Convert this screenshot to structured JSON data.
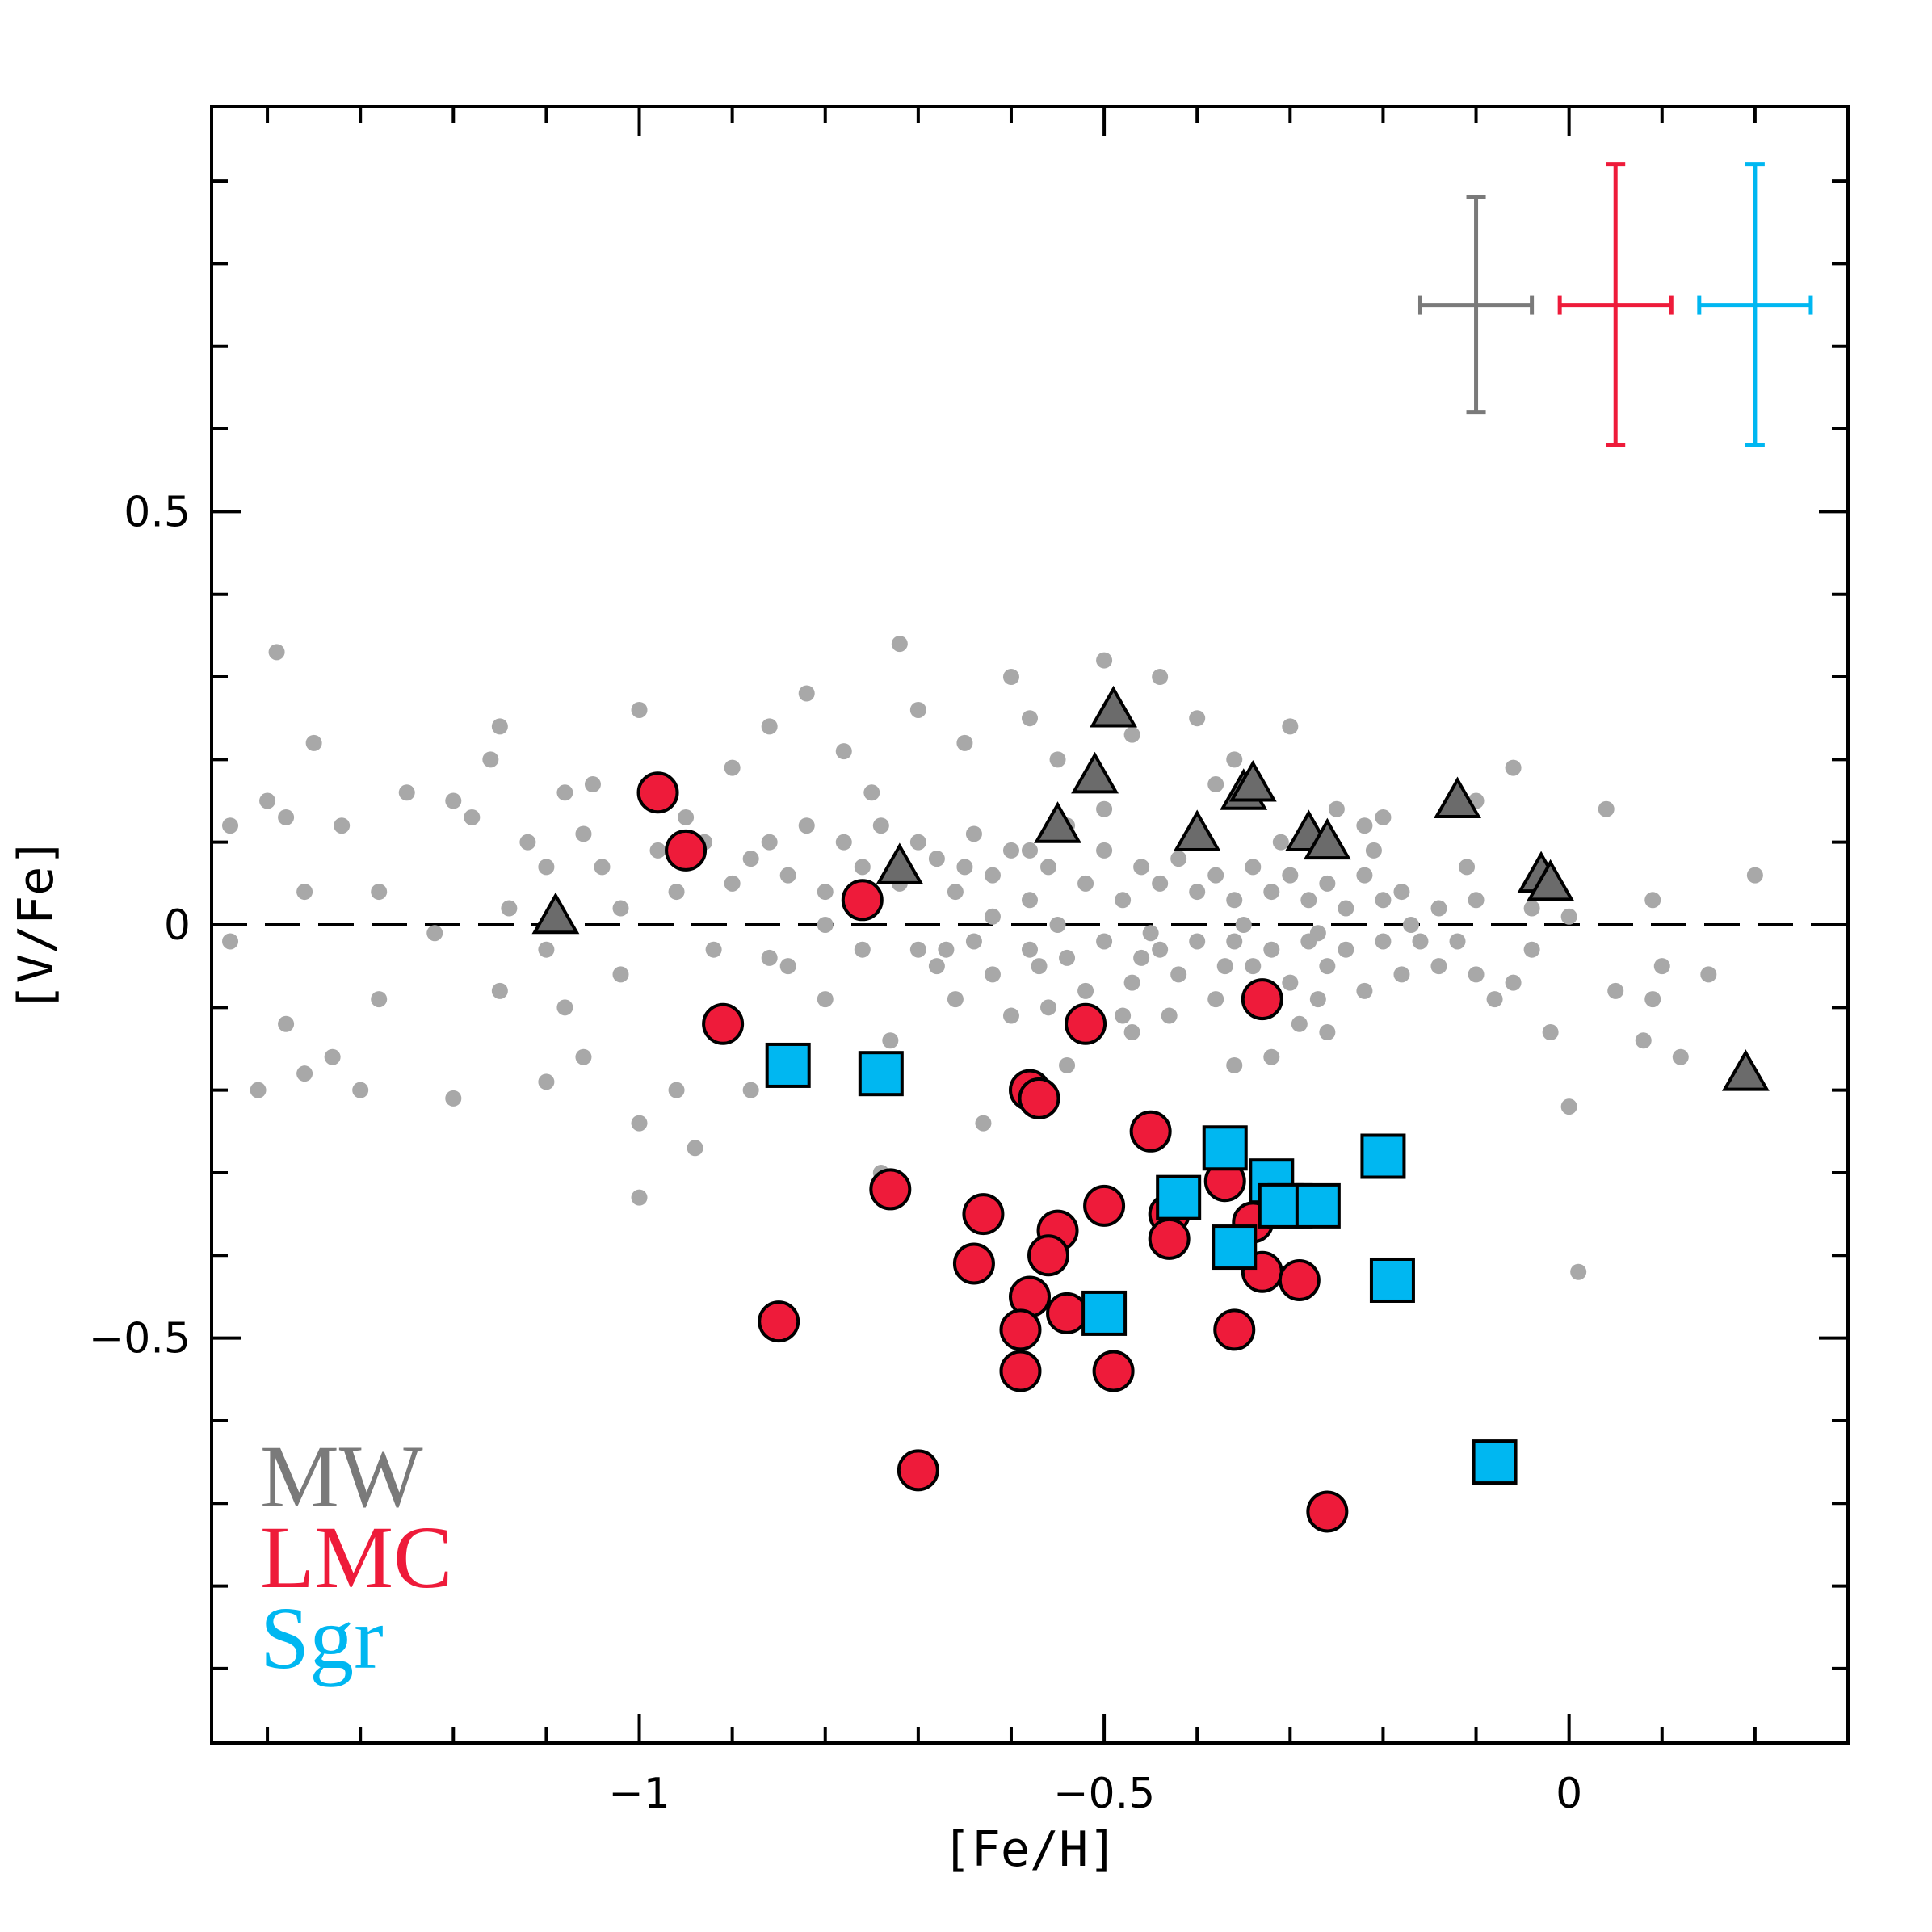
{
  "chart_data": {
    "type": "scatter",
    "xlabel": "[Fe/H]",
    "ylabel": "[V/Fe]",
    "xlim": [
      -1.46,
      0.3
    ],
    "ylim": [
      -0.99,
      0.99
    ],
    "x_ticks": [
      {
        "value": -1,
        "label": "−1"
      },
      {
        "value": -0.5,
        "label": "−0.5"
      },
      {
        "value": 0,
        "label": "0"
      }
    ],
    "y_ticks": [
      {
        "value": 0.5,
        "label": "0.5"
      },
      {
        "value": 0,
        "label": "0"
      },
      {
        "value": -0.5,
        "label": "−0.5"
      }
    ],
    "reference_line": {
      "y": 0,
      "style": "dashed"
    },
    "legend": [
      {
        "label": "MW",
        "color": "#7a7a7a"
      },
      {
        "label": "LMC",
        "color": "#ee1b3a"
      },
      {
        "label": "Sgr",
        "color": "#00b7f1"
      }
    ],
    "error_bars": [
      {
        "series": "MW",
        "x": -0.1,
        "y": 0.75,
        "xerr": 0.06,
        "yerr": 0.13,
        "color": "#7a7a7a"
      },
      {
        "series": "LMC",
        "x": 0.05,
        "y": 0.75,
        "xerr": 0.06,
        "yerr": 0.17,
        "color": "#ee1b3a"
      },
      {
        "series": "Sgr",
        "x": 0.2,
        "y": 0.75,
        "xerr": 0.06,
        "yerr": 0.17,
        "color": "#00b7f1"
      }
    ],
    "series": [
      {
        "name": "MW field",
        "marker": "dot",
        "color": "#a8a8a8",
        "points": [
          [
            -1.39,
            0.33
          ],
          [
            -1.35,
            0.22
          ],
          [
            -1.25,
            0.16
          ],
          [
            -1.2,
            0.15
          ],
          [
            -1.16,
            0.2
          ],
          [
            -1.15,
            0.24
          ],
          [
            -1.08,
            0.16
          ],
          [
            -1.05,
            0.17
          ],
          [
            -1.0,
            0.26
          ],
          [
            -0.95,
            0.13
          ],
          [
            -0.9,
            0.19
          ],
          [
            -0.86,
            0.24
          ],
          [
            -0.82,
            0.28
          ],
          [
            -0.78,
            0.21
          ],
          [
            -0.75,
            0.16
          ],
          [
            -0.72,
            0.34
          ],
          [
            -0.7,
            0.26
          ],
          [
            -0.65,
            0.22
          ],
          [
            -0.6,
            0.3
          ],
          [
            -0.58,
            0.25
          ],
          [
            -0.55,
            0.2
          ],
          [
            -0.5,
            0.32
          ],
          [
            -0.47,
            0.23
          ],
          [
            -0.44,
            0.3
          ],
          [
            -0.4,
            0.25
          ],
          [
            -0.36,
            0.2
          ],
          [
            -0.3,
            0.24
          ],
          [
            -0.25,
            0.14
          ],
          [
            -0.2,
            0.13
          ],
          [
            -0.1,
            0.15
          ],
          [
            -0.06,
            0.19
          ],
          [
            0.04,
            0.14
          ],
          [
            0.2,
            0.06
          ],
          [
            -1.44,
            0.12
          ],
          [
            -1.4,
            0.15
          ],
          [
            -1.38,
            0.13
          ],
          [
            -1.36,
            0.04
          ],
          [
            -1.32,
            0.12
          ],
          [
            -1.28,
            0.04
          ],
          [
            -1.18,
            0.13
          ],
          [
            -1.14,
            0.02
          ],
          [
            -1.12,
            0.1
          ],
          [
            -1.1,
            0.07
          ],
          [
            -1.06,
            0.11
          ],
          [
            -1.04,
            0.07
          ],
          [
            -1.02,
            0.02
          ],
          [
            -0.98,
            0.09
          ],
          [
            -0.96,
            0.04
          ],
          [
            -0.93,
            0.1
          ],
          [
            -0.9,
            0.05
          ],
          [
            -0.88,
            0.08
          ],
          [
            -0.86,
            0.1
          ],
          [
            -0.84,
            0.06
          ],
          [
            -0.82,
            0.12
          ],
          [
            -0.8,
            0.04
          ],
          [
            -0.78,
            0.1
          ],
          [
            -0.76,
            0.07
          ],
          [
            -0.74,
            0.12
          ],
          [
            -0.72,
            0.05
          ],
          [
            -0.7,
            0.1
          ],
          [
            -0.68,
            0.08
          ],
          [
            -0.66,
            0.04
          ],
          [
            -0.64,
            0.11
          ],
          [
            -0.62,
            0.06
          ],
          [
            -0.6,
            0.09
          ],
          [
            -0.58,
            0.03
          ],
          [
            -0.56,
            0.07
          ],
          [
            -0.54,
            0.12
          ],
          [
            -0.52,
            0.05
          ],
          [
            -0.5,
            0.09
          ],
          [
            -0.48,
            0.03
          ],
          [
            -0.46,
            0.07
          ],
          [
            -0.44,
            0.05
          ],
          [
            -0.42,
            0.08
          ],
          [
            -0.4,
            0.04
          ],
          [
            -0.38,
            0.06
          ],
          [
            -0.36,
            0.03
          ],
          [
            -0.34,
            0.07
          ],
          [
            -0.32,
            0.04
          ],
          [
            -0.3,
            0.06
          ],
          [
            -0.28,
            0.03
          ],
          [
            -0.26,
            0.05
          ],
          [
            -0.24,
            0.02
          ],
          [
            -0.22,
            0.06
          ],
          [
            -0.2,
            0.03
          ],
          [
            -0.18,
            0.04
          ],
          [
            -0.14,
            0.02
          ],
          [
            -0.1,
            0.03
          ],
          [
            -0.04,
            0.02
          ],
          [
            0.0,
            0.01
          ],
          [
            0.09,
            0.03
          ],
          [
            -1.44,
            -0.02
          ],
          [
            -1.41,
            -0.2
          ],
          [
            -1.38,
            -0.12
          ],
          [
            -1.36,
            -0.18
          ],
          [
            -1.33,
            -0.16
          ],
          [
            -1.3,
            -0.2
          ],
          [
            -1.28,
            -0.09
          ],
          [
            -1.22,
            -0.01
          ],
          [
            -1.2,
            -0.21
          ],
          [
            -1.15,
            -0.08
          ],
          [
            -1.1,
            -0.03
          ],
          [
            -1.1,
            -0.19
          ],
          [
            -1.08,
            -0.1
          ],
          [
            -1.06,
            -0.16
          ],
          [
            -1.0,
            -0.24
          ],
          [
            -1.0,
            -0.33
          ],
          [
            -0.96,
            -0.2
          ],
          [
            -0.94,
            -0.27
          ],
          [
            -0.92,
            -0.03
          ],
          [
            -0.88,
            -0.2
          ],
          [
            -0.84,
            -0.05
          ],
          [
            -0.8,
            -0.09
          ],
          [
            -0.76,
            -0.03
          ],
          [
            -0.74,
            -0.3
          ],
          [
            -0.73,
            -0.14
          ],
          [
            -0.7,
            -0.03
          ],
          [
            -0.68,
            -0.05
          ],
          [
            -0.66,
            -0.09
          ],
          [
            -0.64,
            -0.02
          ],
          [
            -0.63,
            -0.24
          ],
          [
            -0.62,
            -0.06
          ],
          [
            -0.6,
            -0.11
          ],
          [
            -0.58,
            -0.03
          ],
          [
            -0.56,
            -0.1
          ],
          [
            -0.54,
            -0.04
          ],
          [
            -0.52,
            -0.08
          ],
          [
            -0.5,
            -0.02
          ],
          [
            -0.48,
            -0.11
          ],
          [
            -0.46,
            -0.04
          ],
          [
            -0.44,
            -0.03
          ],
          [
            -0.42,
            -0.06
          ],
          [
            -0.4,
            -0.02
          ],
          [
            -0.38,
            -0.09
          ],
          [
            -0.36,
            -0.02
          ],
          [
            -0.34,
            -0.05
          ],
          [
            -0.32,
            -0.03
          ],
          [
            -0.3,
            -0.07
          ],
          [
            -0.28,
            -0.02
          ],
          [
            -0.26,
            -0.05
          ],
          [
            -0.24,
            -0.03
          ],
          [
            -0.22,
            -0.08
          ],
          [
            -0.2,
            -0.02
          ],
          [
            -0.18,
            -0.06
          ],
          [
            -0.16,
            -0.02
          ],
          [
            -0.14,
            -0.05
          ],
          [
            -0.12,
            -0.02
          ],
          [
            -0.1,
            -0.06
          ],
          [
            -0.08,
            -0.09
          ],
          [
            -0.06,
            -0.07
          ],
          [
            -0.04,
            -0.03
          ],
          [
            -0.02,
            -0.13
          ],
          [
            0.0,
            -0.22
          ],
          [
            0.01,
            -0.42
          ],
          [
            0.05,
            -0.08
          ],
          [
            0.08,
            -0.14
          ],
          [
            0.09,
            -0.09
          ],
          [
            0.1,
            -0.05
          ],
          [
            0.12,
            -0.16
          ],
          [
            0.15,
            -0.06
          ],
          [
            -0.54,
            -0.17
          ],
          [
            -0.47,
            -0.13
          ],
          [
            -0.36,
            -0.17
          ],
          [
            -0.32,
            -0.16
          ],
          [
            -0.29,
            -0.12
          ],
          [
            -0.26,
            -0.13
          ],
          [
            -0.5,
            0.14
          ],
          [
            -0.38,
            0.17
          ],
          [
            -0.22,
            0.12
          ],
          [
            -0.62,
            0.01
          ],
          [
            -0.55,
            0.0
          ],
          [
            -0.45,
            -0.01
          ],
          [
            -0.35,
            0.0
          ],
          [
            -0.27,
            -0.01
          ],
          [
            -0.17,
            0.0
          ],
          [
            -0.57,
            -0.05
          ],
          [
            -0.47,
            -0.07
          ],
          [
            -0.37,
            -0.05
          ],
          [
            -0.67,
            -0.03
          ],
          [
            -0.52,
            -0.12
          ],
          [
            -0.43,
            -0.11
          ],
          [
            -0.27,
            -0.09
          ],
          [
            -0.65,
            0.07
          ],
          [
            -0.58,
            0.09
          ],
          [
            -0.41,
            0.1
          ],
          [
            -0.31,
            0.1
          ],
          [
            -0.21,
            0.09
          ],
          [
            -0.11,
            0.07
          ],
          [
            -0.8,
            0.0
          ],
          [
            -0.86,
            -0.04
          ],
          [
            -1.02,
            -0.06
          ],
          [
            -0.9,
            -0.12
          ]
        ]
      },
      {
        "name": "MW",
        "marker": "triangle",
        "color": "#6b6b6b",
        "points": [
          [
            -1.09,
            0.01
          ],
          [
            -0.72,
            0.07
          ],
          [
            -0.55,
            0.12
          ],
          [
            -0.51,
            0.18
          ],
          [
            -0.49,
            0.26
          ],
          [
            -0.4,
            0.11
          ],
          [
            -0.35,
            0.16
          ],
          [
            -0.34,
            0.17
          ],
          [
            -0.28,
            0.11
          ],
          [
            -0.26,
            0.1
          ],
          [
            -0.12,
            0.15
          ],
          [
            -0.03,
            0.06
          ],
          [
            -0.02,
            0.05
          ],
          [
            0.19,
            -0.18
          ]
        ]
      },
      {
        "name": "LMC",
        "marker": "circle",
        "color": "#ee1b3a",
        "points": [
          [
            -0.98,
            0.16
          ],
          [
            -0.95,
            0.09
          ],
          [
            -0.76,
            0.03
          ],
          [
            -0.91,
            -0.12
          ],
          [
            -0.52,
            -0.12
          ],
          [
            -0.33,
            -0.09
          ],
          [
            -0.58,
            -0.2
          ],
          [
            -0.57,
            -0.21
          ],
          [
            -0.45,
            -0.25
          ],
          [
            -0.73,
            -0.32
          ],
          [
            -0.63,
            -0.35
          ],
          [
            -0.5,
            -0.34
          ],
          [
            -0.43,
            -0.35
          ],
          [
            -0.37,
            -0.31
          ],
          [
            -0.34,
            -0.36
          ],
          [
            -0.55,
            -0.37
          ],
          [
            -0.43,
            -0.38
          ],
          [
            -0.56,
            -0.4
          ],
          [
            -0.64,
            -0.41
          ],
          [
            -0.33,
            -0.42
          ],
          [
            -0.29,
            -0.43
          ],
          [
            -0.58,
            -0.45
          ],
          [
            -0.54,
            -0.47
          ],
          [
            -0.85,
            -0.48
          ],
          [
            -0.59,
            -0.49
          ],
          [
            -0.36,
            -0.49
          ],
          [
            -0.59,
            -0.54
          ],
          [
            -0.49,
            -0.54
          ],
          [
            -0.7,
            -0.66
          ],
          [
            -0.26,
            -0.71
          ]
        ]
      },
      {
        "name": "Sgr",
        "marker": "square",
        "color": "#00b7f1",
        "points": [
          [
            -0.84,
            -0.17
          ],
          [
            -0.74,
            -0.18
          ],
          [
            -0.37,
            -0.27
          ],
          [
            -0.2,
            -0.28
          ],
          [
            -0.32,
            -0.31
          ],
          [
            -0.42,
            -0.33
          ],
          [
            -0.3,
            -0.34
          ],
          [
            -0.31,
            -0.34
          ],
          [
            -0.27,
            -0.34
          ],
          [
            -0.36,
            -0.39
          ],
          [
            -0.19,
            -0.43
          ],
          [
            -0.5,
            -0.47
          ],
          [
            -0.08,
            -0.65
          ]
        ]
      }
    ]
  }
}
